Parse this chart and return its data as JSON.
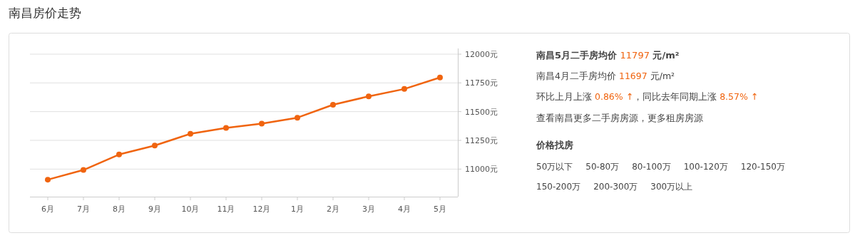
{
  "chart_data": [
    {
      "type": "line",
      "title": "南昌房价走势",
      "categories": [
        "6月",
        "7月",
        "8月",
        "9月",
        "10月",
        "11月",
        "12月",
        "1月",
        "2月",
        "3月",
        "4月",
        "5月"
      ],
      "series": [
        {
          "color": "#f0640f",
          "values": [
            10908,
            10992,
            11127,
            11205,
            11307,
            11358,
            11396,
            11447,
            11560,
            11633,
            11697,
            11797
          ]
        }
      ],
      "ylim": [
        10760,
        12000
      ],
      "yticks": [
        {
          "value": 11000,
          "label": "11000元"
        },
        {
          "value": 11250,
          "label": "11250元"
        },
        {
          "value": 11500,
          "label": "11500元"
        },
        {
          "value": 11750,
          "label": "11750元"
        },
        {
          "value": 12000,
          "label": "12000元"
        }
      ],
      "grid": "y",
      "marker": "circle"
    },
    {
      "type": "other",
      "title": "价格找房",
      "annotations": [
        "南昌5月二手房均价 11797 元/m²",
        "南昌4月二手房均价 11697 元/m²",
        "环比上月上涨 0.86% ↑，同比去年同期上涨 8.57% ↑",
        "查看南昌更多二手房房源，更多租房房源",
        "50万以下",
        "50-80万",
        "80-100万",
        "100-120万",
        "120-150万",
        "150-200万",
        "200-300万",
        "300万以上"
      ]
    }
  ]
}
